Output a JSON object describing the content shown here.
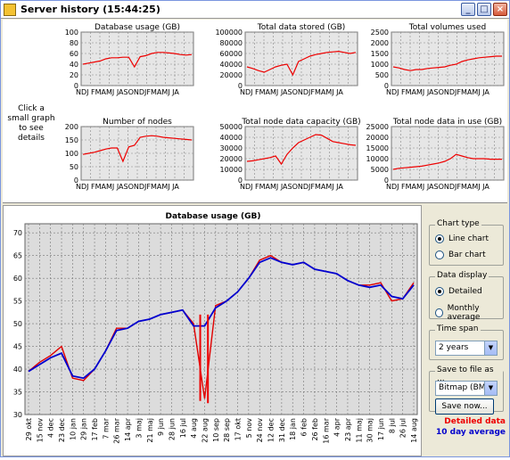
{
  "window": {
    "title": "Server history  (15:44:25)"
  },
  "hint": "Click a small graph to see details",
  "small_charts": [
    {
      "title": "Database usage (GB)",
      "ylim": [
        0,
        100
      ],
      "yticks": [
        "100",
        "80",
        "60",
        "40",
        "20",
        "0"
      ],
      "xlabel": "NDJ FMAMJ JASONDJFMAMJ JA"
    },
    {
      "title": "Total data stored (GB)",
      "ylim": [
        0,
        100000
      ],
      "yticks": [
        "100000",
        "80000",
        "60000",
        "40000",
        "20000",
        "0"
      ],
      "xlabel": "NDJ FMAMJ JASONDJFMAMJ JA"
    },
    {
      "title": "Total volumes used",
      "ylim": [
        0,
        2500
      ],
      "yticks": [
        "2500",
        "2000",
        "1500",
        "1000",
        "500",
        "0"
      ],
      "xlabel": "NDJ FMAMJ JASONDJFMAMJ JA"
    },
    {
      "title": "Number of nodes",
      "ylim": [
        0,
        200
      ],
      "yticks": [
        "200",
        "150",
        "100",
        "50",
        "0"
      ],
      "xlabel": "NDJ FMAMJ JASONDJFMAMJ JA"
    },
    {
      "title": "Total node data capacity (GB)",
      "ylim": [
        0,
        50000
      ],
      "yticks": [
        "50000",
        "40000",
        "30000",
        "20000",
        "10000",
        "0"
      ],
      "xlabel": "NDJ FMAMJ JASONDJFMAMJ JA"
    },
    {
      "title": "Total node data in use (GB)",
      "ylim": [
        0,
        25000
      ],
      "yticks": [
        "25000",
        "20000",
        "15000",
        "10000",
        "5000",
        "0"
      ],
      "xlabel": "NDJ FMAMJ JASONDJFMAMJ JA"
    }
  ],
  "chart_data": {
    "type": "line",
    "title": "Database usage (GB)",
    "ylim": [
      30,
      72
    ],
    "yticks": [
      30,
      35,
      40,
      45,
      50,
      55,
      60,
      65,
      70
    ],
    "grid": true,
    "categories": [
      "29 okt",
      "15 nov",
      "4 dec",
      "23 dec",
      "10 jan",
      "29 jan",
      "17 feb",
      "7 mar",
      "26 mar",
      "14 apr",
      "3 maj",
      "21 maj",
      "9 jun",
      "28 jun",
      "16 jul",
      "4 aug",
      "22 aug",
      "10 sep",
      "28 sep",
      "17 okt",
      "5 nov",
      "24 nov",
      "12 dec",
      "31 dec",
      "18 jan",
      "6 feb",
      "26 feb",
      "16 mar",
      "4 apr",
      "23 apr",
      "11 maj",
      "30 maj",
      "17 jun",
      "8 jul",
      "26 jul",
      "14 aug"
    ],
    "series": [
      {
        "name": "Detailed data",
        "color": "#e00000",
        "values": [
          39.5,
          41.5,
          43,
          45,
          38,
          37.5,
          40,
          44,
          49,
          49,
          50.5,
          51,
          52,
          52.5,
          53,
          50,
          33.5,
          54,
          55,
          57,
          60,
          64,
          65,
          63.5,
          63,
          63.5,
          62,
          61.5,
          61,
          59.5,
          58.5,
          58.5,
          59,
          55,
          55.5,
          59
        ]
      },
      {
        "name": "10 day average",
        "color": "#0000d0",
        "values": [
          39.5,
          41,
          42.5,
          43.5,
          38.5,
          38,
          40,
          44,
          48.5,
          49,
          50.5,
          51,
          52,
          52.5,
          53,
          49.5,
          49.5,
          53.5,
          55,
          57,
          60,
          63.5,
          64.5,
          63.5,
          63,
          63.5,
          62,
          61.5,
          61,
          59.5,
          58.5,
          58,
          58.5,
          56,
          55.5,
          58.5
        ]
      }
    ],
    "spikes": [
      {
        "index": 15.6,
        "value": 33
      },
      {
        "index": 16.3,
        "value": 32.5
      }
    ]
  },
  "chart_type": {
    "label": "Chart type",
    "options": [
      "Line chart",
      "Bar chart"
    ],
    "selected": 0
  },
  "data_display": {
    "label": "Data display",
    "options": [
      "Detailed",
      "Monthly average"
    ],
    "selected": 0
  },
  "time_span": {
    "label": "Time span",
    "value": "2 years"
  },
  "save": {
    "label": "Save to file as ...",
    "value": "Bitmap (BMP)",
    "button": "Save now..."
  },
  "legend": {
    "detailed": "Detailed data",
    "average": "10 day average"
  }
}
